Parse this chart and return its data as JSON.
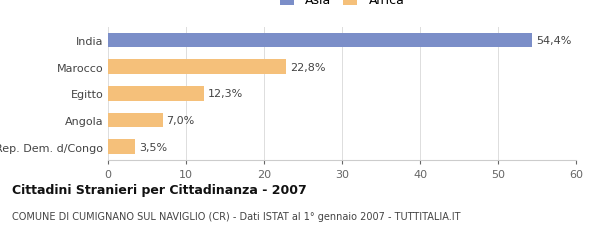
{
  "categories": [
    "Rep. Dem. d/Congo",
    "Angola",
    "Egitto",
    "Marocco",
    "India"
  ],
  "values": [
    3.5,
    7.0,
    12.3,
    22.8,
    54.4
  ],
  "colors": [
    "#f5c07a",
    "#f5c07a",
    "#f5c07a",
    "#f5c07a",
    "#7b8ec8"
  ],
  "labels": [
    "3,5%",
    "7,0%",
    "12,3%",
    "22,8%",
    "54,4%"
  ],
  "legend": [
    {
      "label": "Asia",
      "color": "#7b8ec8"
    },
    {
      "label": "Africa",
      "color": "#f5c07a"
    }
  ],
  "xlim": [
    0,
    60
  ],
  "xticks": [
    0,
    10,
    20,
    30,
    40,
    50,
    60
  ],
  "title": "Cittadini Stranieri per Cittadinanza - 2007",
  "subtitle": "COMUNE DI CUMIGNANO SUL NAVIGLIO (CR) - Dati ISTAT al 1° gennaio 2007 - TUTTITALIA.IT",
  "background_color": "#ffffff",
  "bar_height": 0.55
}
